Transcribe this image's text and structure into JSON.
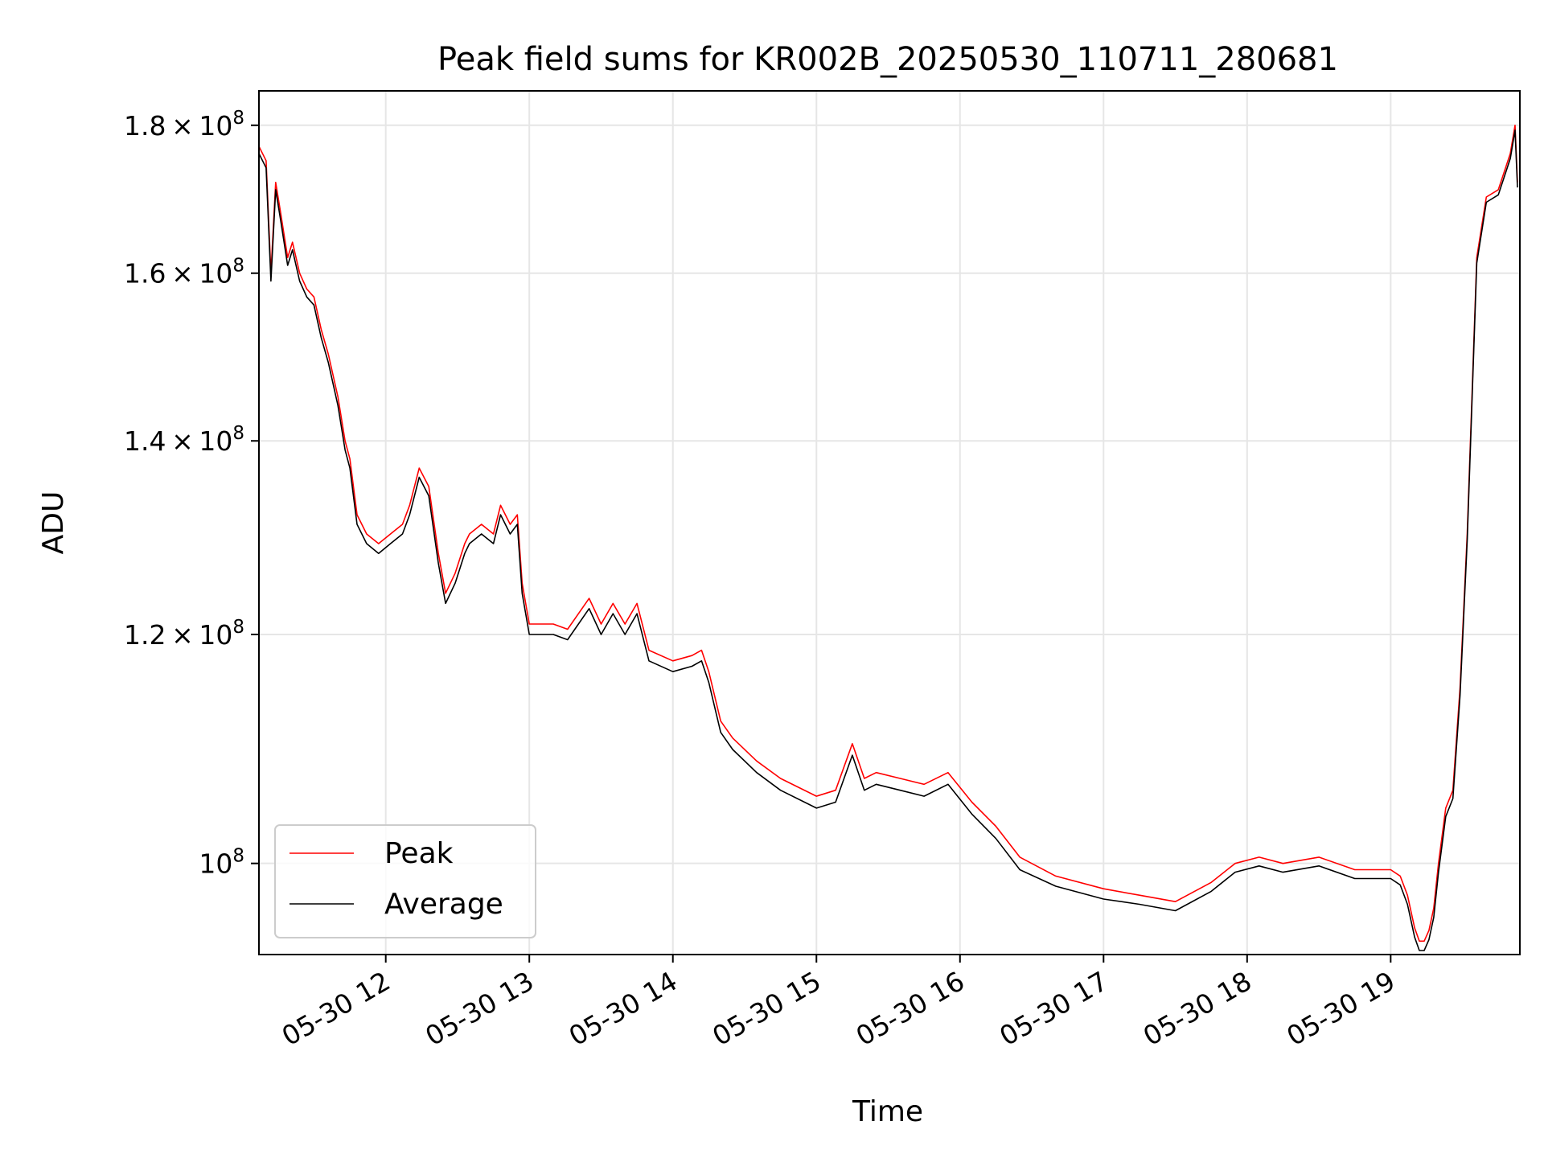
{
  "chart_data": {
    "type": "line",
    "title": "Peak field sums for KR002B_20250530_110711_280681",
    "xlabel": "Time",
    "ylabel": "ADU",
    "yscale": "log",
    "grid": true,
    "legend_placement": "lower-left",
    "xlim": [
      "2025-05-30 11:07",
      "2025-05-30 19:54"
    ],
    "ylim": [
      93000000,
      185000000
    ],
    "x_ticks": [
      {
        "x": "2025-05-30 12:00",
        "label": "05-30 12"
      },
      {
        "x": "2025-05-30 13:00",
        "label": "05-30 13"
      },
      {
        "x": "2025-05-30 14:00",
        "label": "05-30 14"
      },
      {
        "x": "2025-05-30 15:00",
        "label": "05-30 15"
      },
      {
        "x": "2025-05-30 16:00",
        "label": "05-30 16"
      },
      {
        "x": "2025-05-30 17:00",
        "label": "05-30 17"
      },
      {
        "x": "2025-05-30 18:00",
        "label": "05-30 18"
      },
      {
        "x": "2025-05-30 19:00",
        "label": "05-30 19"
      }
    ],
    "y_ticks": [
      {
        "y": 100000000,
        "mantissa": "",
        "exponent": "8"
      },
      {
        "y": 120000000,
        "mantissa": "1.2",
        "exponent": "8"
      },
      {
        "y": 140000000,
        "mantissa": "1.4",
        "exponent": "8"
      },
      {
        "y": 160000000,
        "mantissa": "1.6",
        "exponent": "8"
      },
      {
        "y": 180000000,
        "mantissa": "1.8",
        "exponent": "8"
      }
    ],
    "x": [
      "2025-05-30 11:07",
      "2025-05-30 11:10",
      "2025-05-30 11:12",
      "2025-05-30 11:14",
      "2025-05-30 11:16",
      "2025-05-30 11:19",
      "2025-05-30 11:21",
      "2025-05-30 11:24",
      "2025-05-30 11:27",
      "2025-05-30 11:30",
      "2025-05-30 11:33",
      "2025-05-30 11:36",
      "2025-05-30 11:40",
      "2025-05-30 11:43",
      "2025-05-30 11:45",
      "2025-05-30 11:48",
      "2025-05-30 11:52",
      "2025-05-30 11:57",
      "2025-05-30 12:02",
      "2025-05-30 12:07",
      "2025-05-30 12:10",
      "2025-05-30 12:14",
      "2025-05-30 12:18",
      "2025-05-30 12:22",
      "2025-05-30 12:25",
      "2025-05-30 12:29",
      "2025-05-30 12:33",
      "2025-05-30 12:35",
      "2025-05-30 12:40",
      "2025-05-30 12:45",
      "2025-05-30 12:48",
      "2025-05-30 12:52",
      "2025-05-30 12:55",
      "2025-05-30 12:57",
      "2025-05-30 13:00",
      "2025-05-30 13:10",
      "2025-05-30 13:16",
      "2025-05-30 13:25",
      "2025-05-30 13:30",
      "2025-05-30 13:35",
      "2025-05-30 13:40",
      "2025-05-30 13:45",
      "2025-05-30 13:50",
      "2025-05-30 14:00",
      "2025-05-30 14:08",
      "2025-05-30 14:12",
      "2025-05-30 14:15",
      "2025-05-30 14:20",
      "2025-05-30 14:25",
      "2025-05-30 14:35",
      "2025-05-30 14:45",
      "2025-05-30 15:00",
      "2025-05-30 15:08",
      "2025-05-30 15:15",
      "2025-05-30 15:20",
      "2025-05-30 15:25",
      "2025-05-30 15:35",
      "2025-05-30 15:45",
      "2025-05-30 15:55",
      "2025-05-30 16:05",
      "2025-05-30 16:15",
      "2025-05-30 16:25",
      "2025-05-30 16:40",
      "2025-05-30 17:00",
      "2025-05-30 17:15",
      "2025-05-30 17:30",
      "2025-05-30 17:45",
      "2025-05-30 17:55",
      "2025-05-30 18:05",
      "2025-05-30 18:15",
      "2025-05-30 18:30",
      "2025-05-30 18:45",
      "2025-05-30 18:55",
      "2025-05-30 19:00",
      "2025-05-30 19:04",
      "2025-05-30 19:07",
      "2025-05-30 19:10",
      "2025-05-30 19:12",
      "2025-05-30 19:14",
      "2025-05-30 19:16",
      "2025-05-30 19:18",
      "2025-05-30 19:20",
      "2025-05-30 19:23",
      "2025-05-30 19:26",
      "2025-05-30 19:29",
      "2025-05-30 19:32",
      "2025-05-30 19:36",
      "2025-05-30 19:40",
      "2025-05-30 19:45",
      "2025-05-30 19:50",
      "2025-05-30 19:52",
      "2025-05-30 19:53"
    ],
    "series": [
      {
        "name": "Peak",
        "color": "#ff0000",
        "values": [
          177000000,
          175000000,
          160000000,
          172000000,
          168000000,
          162000000,
          164000000,
          160000000,
          158000000,
          157000000,
          153000000,
          150000000,
          145000000,
          140000000,
          138000000,
          132000000,
          130000000,
          129000000,
          130000000,
          131000000,
          133000000,
          137000000,
          135000000,
          128000000,
          124000000,
          126000000,
          129000000,
          130000000,
          131000000,
          130000000,
          133000000,
          131000000,
          132000000,
          125000000,
          121000000,
          121000000,
          120500000,
          123500000,
          121000000,
          123000000,
          121000000,
          123000000,
          118500000,
          117500000,
          118000000,
          118500000,
          116500000,
          112000000,
          110500000,
          108500000,
          107000000,
          105500000,
          106000000,
          110000000,
          107000000,
          107500000,
          107000000,
          106500000,
          107500000,
          105000000,
          103000000,
          100500000,
          99000000,
          98000000,
          97500000,
          97000000,
          98500000,
          100000000,
          100500000,
          100000000,
          100500000,
          99500000,
          99500000,
          99500000,
          99000000,
          97500000,
          95000000,
          94000000,
          94000000,
          94800000,
          96500000,
          100000000,
          104500000,
          106000000,
          115000000,
          130000000,
          162000000,
          170000000,
          171000000,
          176000000,
          180000000,
          172000000
        ]
      },
      {
        "name": "Average",
        "color": "#000000",
        "values": [
          176000000,
          174000000,
          159000000,
          171000000,
          167000000,
          161000000,
          163000000,
          159000000,
          157000000,
          156000000,
          152000000,
          149000000,
          144000000,
          139000000,
          137000000,
          131000000,
          129000000,
          128000000,
          129000000,
          130000000,
          132000000,
          136000000,
          134000000,
          127000000,
          123000000,
          125000000,
          128000000,
          129000000,
          130000000,
          129000000,
          132000000,
          130000000,
          131000000,
          124000000,
          120000000,
          120000000,
          119500000,
          122500000,
          120000000,
          122000000,
          120000000,
          122000000,
          117500000,
          116500000,
          117000000,
          117500000,
          115500000,
          111000000,
          109500000,
          107500000,
          106000000,
          104500000,
          105000000,
          109000000,
          106000000,
          106500000,
          106000000,
          105500000,
          106500000,
          104000000,
          102000000,
          99500000,
          98200000,
          97200000,
          96800000,
          96300000,
          97800000,
          99300000,
          99800000,
          99300000,
          99800000,
          98800000,
          98800000,
          98800000,
          98300000,
          96800000,
          94300000,
          93300000,
          93300000,
          94100000,
          95800000,
          99300000,
          103800000,
          105300000,
          114300000,
          129300000,
          161300000,
          169300000,
          170300000,
          175300000,
          179300000,
          171300000
        ]
      }
    ]
  },
  "legend": {
    "items": [
      {
        "label": "Peak",
        "color": "#ff0000"
      },
      {
        "label": "Average",
        "color": "#000000"
      }
    ]
  }
}
